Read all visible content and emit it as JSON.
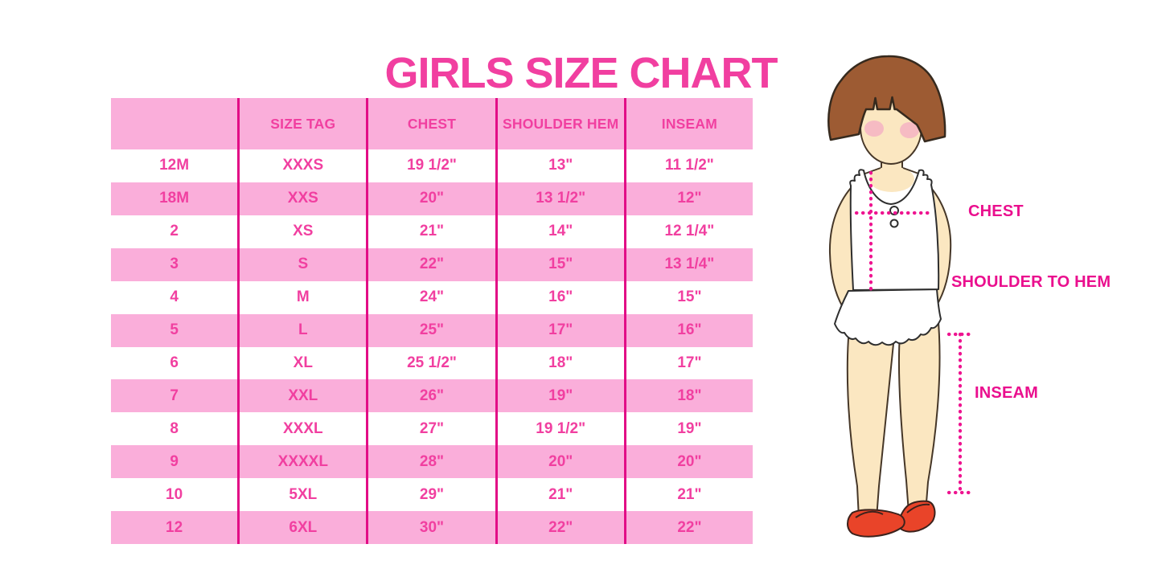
{
  "chart_data": {
    "type": "table",
    "title": "GIRLS SIZE CHART",
    "columns": [
      "",
      "SIZE TAG",
      "CHEST",
      "SHOULDER HEM",
      "INSEAM"
    ],
    "rows": [
      [
        "12M",
        "XXXS",
        "19 1/2\"",
        "13\"",
        "11 1/2\""
      ],
      [
        "18M",
        "XXS",
        "20\"",
        "13 1/2\"",
        "12\""
      ],
      [
        "2",
        "XS",
        "21\"",
        "14\"",
        "12 1/4\""
      ],
      [
        "3",
        "S",
        "22\"",
        "15\"",
        "13 1/4\""
      ],
      [
        "4",
        "M",
        "24\"",
        "16\"",
        "15\""
      ],
      [
        "5",
        "L",
        "25\"",
        "17\"",
        "16\""
      ],
      [
        "6",
        "XL",
        "25 1/2\"",
        "18\"",
        "17\""
      ],
      [
        "7",
        "XXL",
        "26\"",
        "19\"",
        "18\""
      ],
      [
        "8",
        "XXXL",
        "27\"",
        "19 1/2\"",
        "19\""
      ],
      [
        "9",
        "XXXXL",
        "28\"",
        "20\"",
        "20\""
      ],
      [
        "10",
        "5XL",
        "29\"",
        "21\"",
        "21\""
      ],
      [
        "12",
        "6XL",
        "30\"",
        "22\"",
        "22\""
      ]
    ],
    "row_stripe_pattern": "header pink, then alternating white/pink",
    "legend_position": "none",
    "grid": "vertical dividers only"
  },
  "figure": {
    "chest_label": "CHEST",
    "shoulder_to_hem_label": "SHOULDER TO HEM",
    "inseam_label": "INSEAM"
  },
  "colors": {
    "title_pink": "#F13FA0",
    "stripe_pink": "#FAAEDA",
    "divider_magenta": "#E20D86",
    "label_magenta": "#EA0F8E",
    "dotted_line_magenta": "#EE1490",
    "hair_brown": "#9D5B33",
    "skin": "#FBE7C1",
    "blush_pink": "#F5B6C3",
    "shoe_red": "#E94429"
  }
}
